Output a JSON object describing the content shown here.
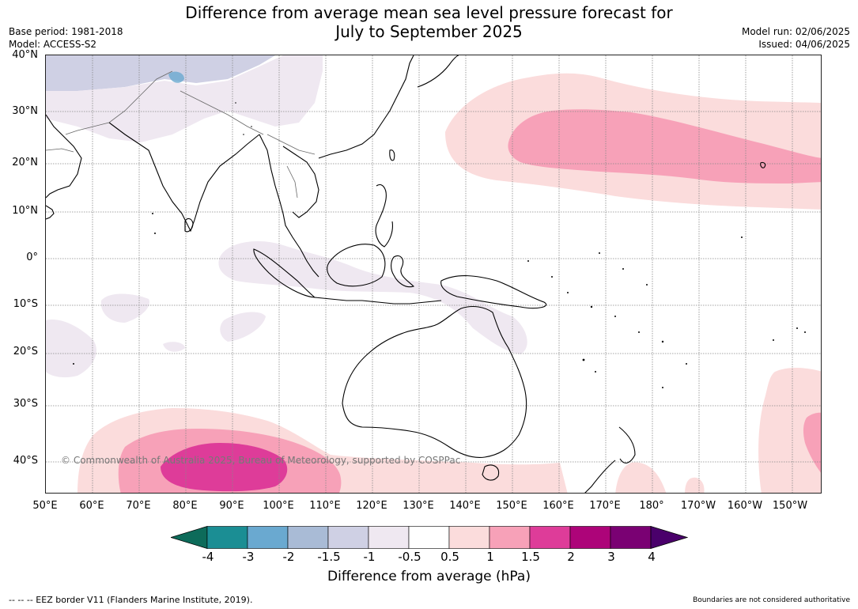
{
  "title": {
    "line1": "Difference from average mean sea level pressure forecast for",
    "line2": "July to September 2025"
  },
  "meta_left": {
    "base_period": "Base period: 1981-2018",
    "model": "Model: ACCESS-S2"
  },
  "meta_right": {
    "model_run": "Model run: 02/06/2025",
    "issued": "Issued: 04/06/2025"
  },
  "lat_labels": [
    "40°N",
    "30°N",
    "20°N",
    "10°N",
    "0°",
    "10°S",
    "20°S",
    "30°S",
    "40°S"
  ],
  "lon_labels": [
    "50°E",
    "60°E",
    "70°E",
    "80°E",
    "90°E",
    "100°E",
    "110°E",
    "120°E",
    "130°E",
    "140°E",
    "150°E",
    "160°E",
    "170°E",
    "180°",
    "170°W",
    "160°W",
    "150°W"
  ],
  "copyright": "© Commonwealth of Australia 2025, Bureau of Meteorology, supported by COSPPac",
  "colorbar": {
    "label": "Difference from average (hPa)",
    "ticks": [
      "-4",
      "-3",
      "-2",
      "-1.5",
      "-1",
      "-0.5",
      "0.5",
      "1",
      "1.5",
      "2",
      "3",
      "4"
    ],
    "colors": [
      "#0d6b5a",
      "#1b8e94",
      "#6aa9d0",
      "#a9bbd6",
      "#cfd0e4",
      "#efe8f1",
      "#ffffff",
      "#fbdcdc",
      "#f7a1b8",
      "#de3c99",
      "#ad0479",
      "#7a0173",
      "#4a006b"
    ]
  },
  "footer_left": "--  --  -- EEZ border V11 (Flanders Marine Institute, 2019).",
  "footer_right": "Boundaries are not considered authoritative"
}
